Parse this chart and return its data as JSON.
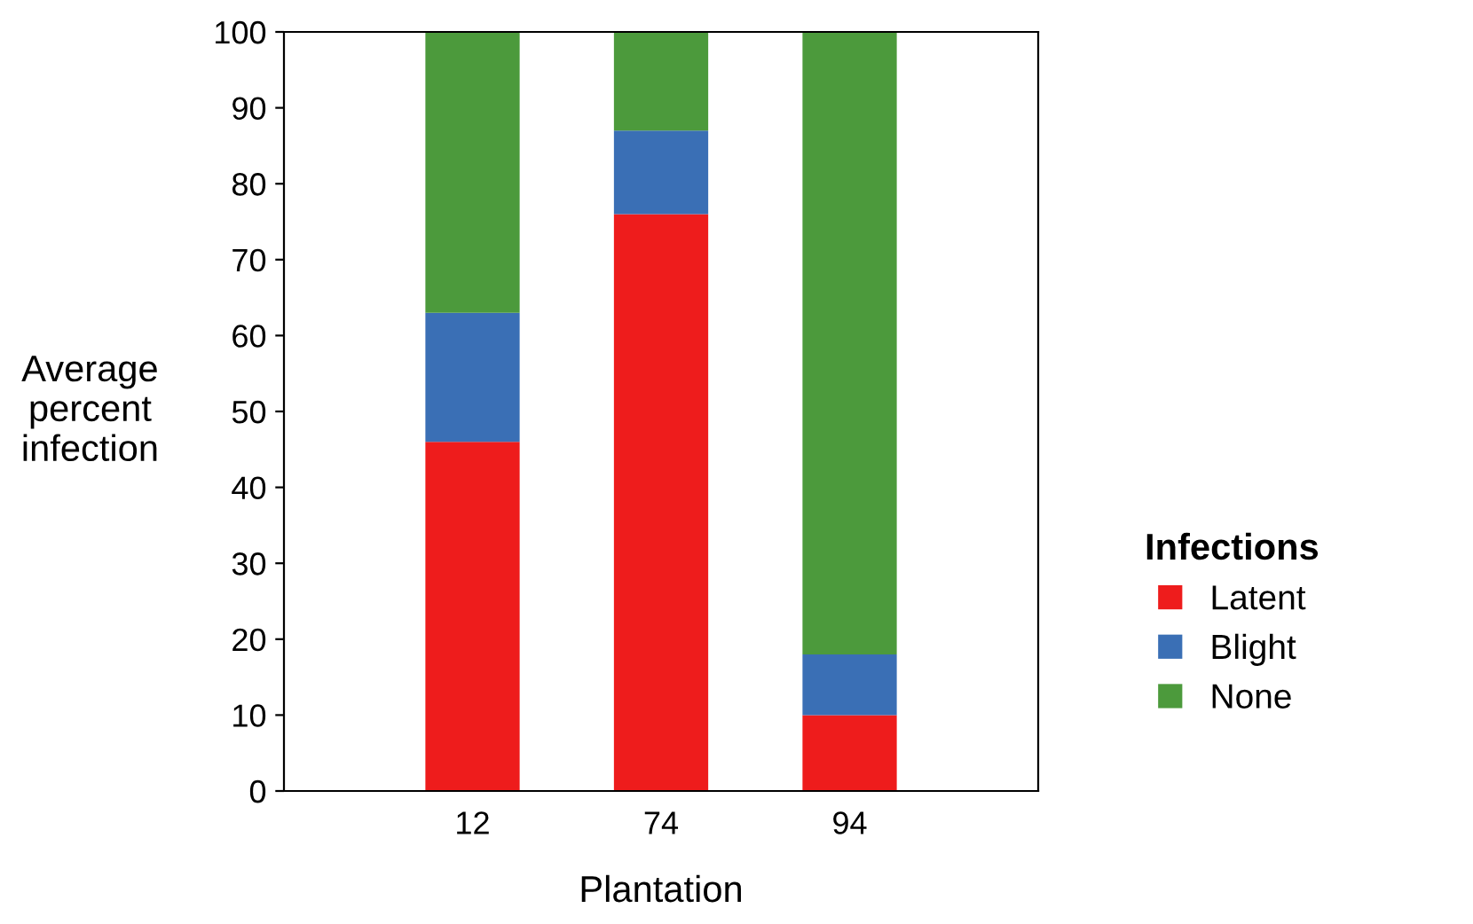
{
  "chart_data": {
    "type": "bar",
    "stacked": true,
    "xlabel": "Plantation",
    "ylabel": "Average\npercent\ninfection",
    "legend_title": "Infections",
    "legend": "right",
    "grid": false,
    "categories": [
      "12",
      "74",
      "94"
    ],
    "series": [
      {
        "name": "Latent",
        "color": "#ee1c1c",
        "values": [
          46,
          76,
          10
        ]
      },
      {
        "name": "Blight",
        "color": "#3a6fb5",
        "values": [
          17,
          11,
          8
        ]
      },
      {
        "name": "None",
        "color": "#4c9a3c",
        "values": [
          37,
          13,
          82
        ]
      }
    ],
    "ylim": [
      0,
      100
    ],
    "yticks": [
      0,
      10,
      20,
      30,
      40,
      50,
      60,
      70,
      80,
      90,
      100
    ]
  }
}
